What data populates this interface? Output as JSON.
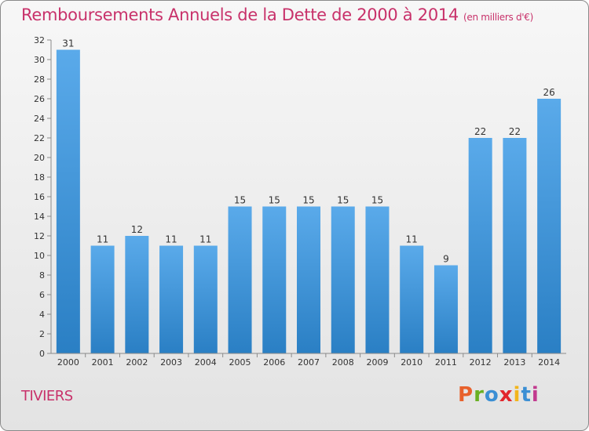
{
  "header": {
    "title": "Remboursements Annuels de la Dette de 2000 à 2014",
    "subtitle": "(en milliers d'€)"
  },
  "footer": {
    "commune": "TIVIERS",
    "logo_letters": [
      "P",
      "r",
      "o",
      "x",
      "i",
      "t",
      "i"
    ],
    "logo_colors": [
      "#e8612c",
      "#6ab023",
      "#3b8fd4",
      "#e2262d",
      "#f2b51c",
      "#3b8fd4",
      "#c23b8f"
    ]
  },
  "chart_data": {
    "type": "bar",
    "title": "Remboursements Annuels de la Dette de 2000 à 2014",
    "subtitle": "(en milliers d'€)",
    "xlabel": "",
    "ylabel": "",
    "categories": [
      "2000",
      "2001",
      "2002",
      "2003",
      "2004",
      "2005",
      "2006",
      "2007",
      "2008",
      "2009",
      "2010",
      "2011",
      "2012",
      "2013",
      "2014"
    ],
    "values": [
      31,
      11,
      12,
      11,
      11,
      15,
      15,
      15,
      15,
      15,
      11,
      9,
      22,
      22,
      26
    ],
    "ylim": [
      0,
      32
    ],
    "yticks": [
      0,
      2,
      4,
      6,
      8,
      10,
      12,
      14,
      16,
      18,
      20,
      22,
      24,
      26,
      28,
      30,
      32
    ],
    "grid": false,
    "data_labels": true,
    "bar_color_top": "#5aaaea",
    "bar_color_bottom": "#2a7fc4",
    "axis_color": "#8a8a8a"
  }
}
